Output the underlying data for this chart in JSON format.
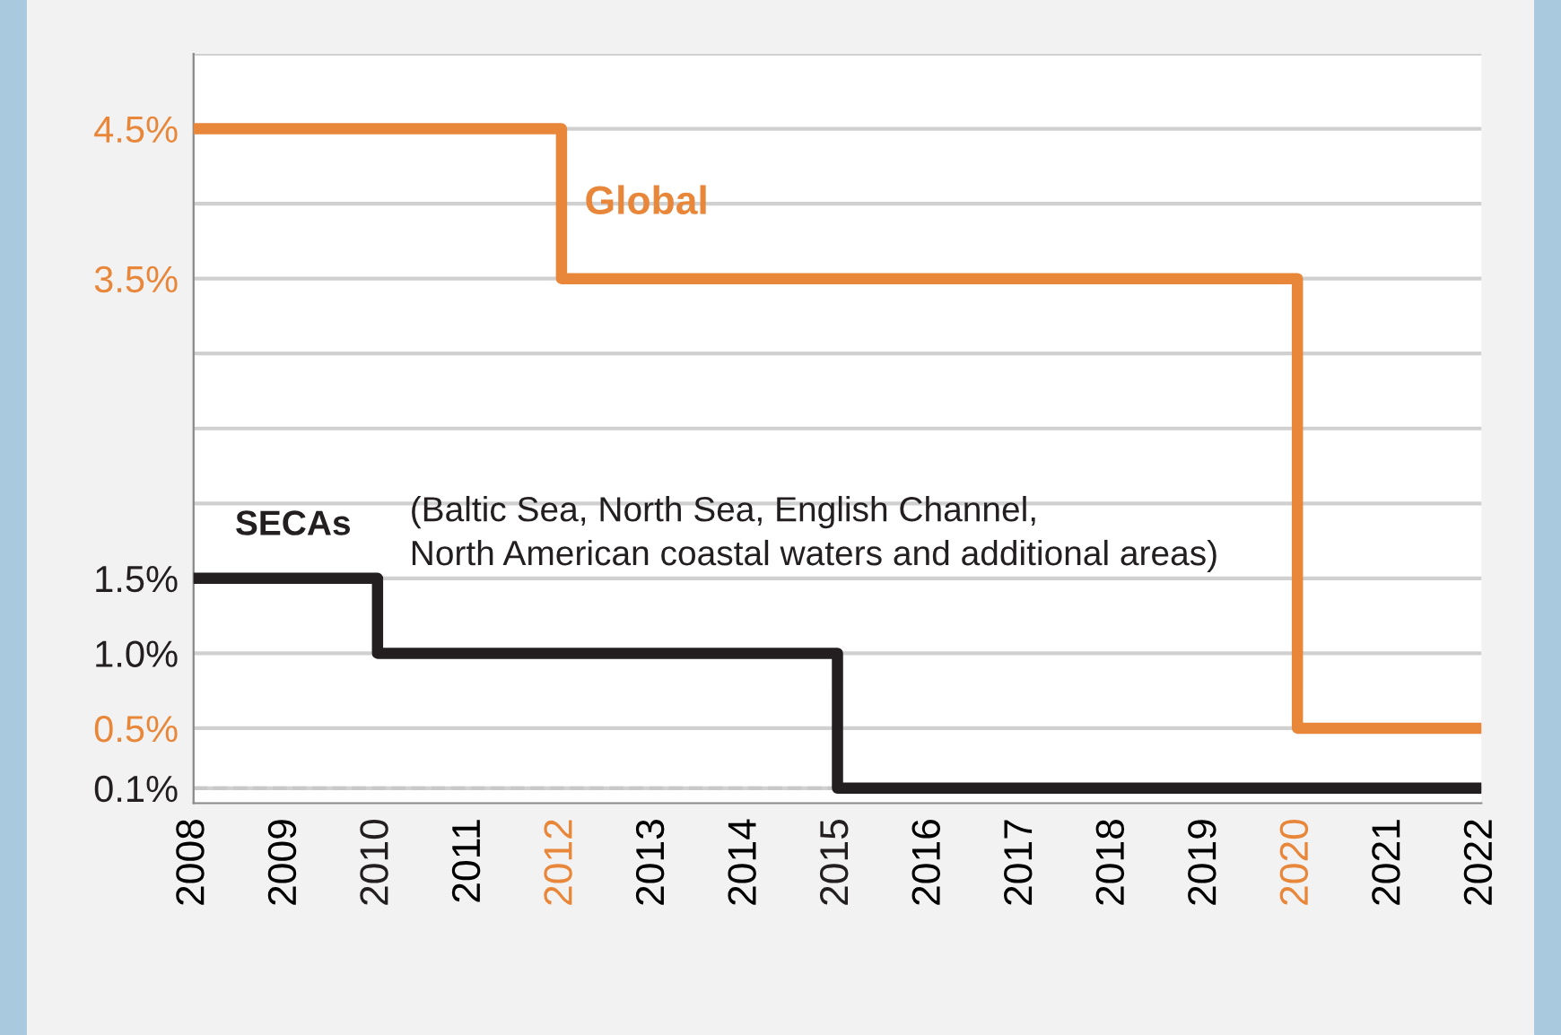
{
  "chart_data": {
    "type": "step",
    "legend": false,
    "grid": "y",
    "xlim": [
      2008,
      2022
    ],
    "xticks": [
      2008,
      2009,
      2010,
      2011,
      2012,
      2013,
      2014,
      2015,
      2016,
      2017,
      2018,
      2019,
      2020,
      2021,
      2022
    ],
    "ylim": [
      0,
      5.0
    ],
    "yticks": [
      {
        "value": 0.1,
        "label": "0.1%"
      },
      {
        "value": 0.5,
        "label": "0.5%"
      },
      {
        "value": 1.0,
        "label": "1.0%"
      },
      {
        "value": 1.5,
        "label": "1.5%"
      },
      {
        "value": 2.0,
        "label": null
      },
      {
        "value": 2.5,
        "label": null
      },
      {
        "value": 3.0,
        "label": null
      },
      {
        "value": 3.5,
        "label": "3.5%"
      },
      {
        "value": 4.0,
        "label": null
      },
      {
        "value": 4.5,
        "label": "4.5%"
      },
      {
        "value": 5.0,
        "label": null
      }
    ],
    "series": [
      {
        "name": "Global",
        "color": "#e8873a",
        "x": [
          2008,
          2012,
          2020,
          2022
        ],
        "values": [
          4.5,
          3.5,
          0.5,
          0.5
        ]
      },
      {
        "name": "SECAs",
        "color": "#231f20",
        "x": [
          2008,
          2010,
          2015,
          2022
        ],
        "values": [
          1.5,
          1.0,
          0.1,
          0.1
        ]
      }
    ],
    "ref_lines": [
      {
        "axis": "y",
        "value": 0.1,
        "label": null,
        "color": "#c8c8c8",
        "line_style": "dashed"
      }
    ],
    "annotations": [
      "(Baltic Sea, North Sea, English Channel,\nNorth American coastal waters and additional areas)"
    ]
  }
}
